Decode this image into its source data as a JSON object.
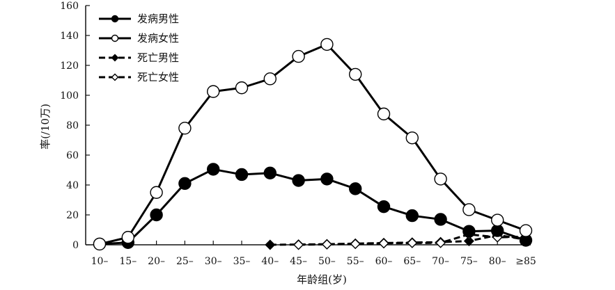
{
  "chart_data": {
    "type": "line",
    "title": "",
    "xlabel": "年龄组(岁)",
    "ylabel": "率(/10万)",
    "categories": [
      "10–",
      "15–",
      "20–",
      "25–",
      "30–",
      "35–",
      "40–",
      "45–",
      "50–",
      "55–",
      "60–",
      "65–",
      "70–",
      "75–",
      "80–",
      "≥85"
    ],
    "ylim": [
      0,
      160
    ],
    "yticks": [
      0,
      20,
      40,
      60,
      80,
      100,
      120,
      140,
      160
    ],
    "grid": false,
    "legend_position": "top-left",
    "series": [
      {
        "name": "发病男性",
        "style": "solid",
        "marker": "filled-circle",
        "values": [
          0.5,
          1.5,
          20,
          41,
          50.5,
          47,
          48,
          43,
          44,
          37.5,
          25.5,
          19.5,
          17,
          9,
          9.5,
          3
        ]
      },
      {
        "name": "发病女性",
        "style": "solid",
        "marker": "open-circle",
        "values": [
          0.5,
          5,
          35,
          78,
          102.5,
          105,
          111,
          126,
          134,
          114,
          87.5,
          71.5,
          44,
          23.5,
          16.5,
          9.5
        ]
      },
      {
        "name": "死亡男性",
        "style": "dashed",
        "marker": "filled-diamond",
        "values": [
          null,
          null,
          null,
          null,
          null,
          null,
          0,
          0.2,
          0.4,
          0.8,
          1.2,
          1.5,
          1.8,
          2.5,
          6.5,
          3.5
        ]
      },
      {
        "name": "死亡女性",
        "style": "dashed",
        "marker": "open-diamond",
        "values": [
          null,
          null,
          null,
          null,
          null,
          null,
          null,
          0,
          0.3,
          0.6,
          1,
          1.2,
          1.3,
          7,
          5,
          5.5
        ]
      }
    ]
  }
}
